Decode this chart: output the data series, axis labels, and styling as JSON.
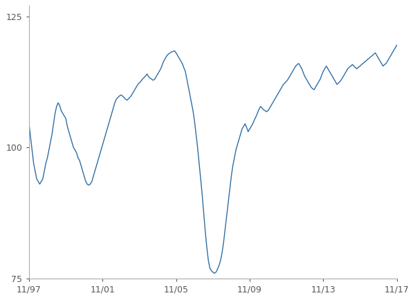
{
  "line_color": "#2e6da4",
  "line_width": 1.0,
  "background_color": "#ffffff",
  "ylim": [
    75,
    127
  ],
  "yticks": [
    75,
    100,
    125
  ],
  "xtick_labels": [
    "11/97",
    "11/01",
    "11/05",
    "11/09",
    "11/13",
    "11/17"
  ],
  "xtick_positions": [
    0,
    48,
    96,
    144,
    192,
    240
  ],
  "spine_color": "#aaaaaa",
  "tick_color": "#555555",
  "data_points": [
    104.5,
    102.0,
    99.5,
    97.0,
    95.5,
    94.0,
    93.5,
    93.0,
    93.5,
    94.0,
    95.5,
    97.0,
    98.0,
    99.5,
    101.0,
    102.5,
    104.5,
    106.5,
    107.8,
    108.5,
    108.0,
    107.0,
    106.5,
    106.0,
    105.5,
    104.0,
    103.0,
    102.0,
    101.0,
    100.0,
    99.5,
    99.0,
    98.0,
    97.5,
    96.5,
    95.5,
    94.5,
    93.5,
    93.0,
    92.8,
    93.0,
    93.5,
    94.5,
    95.5,
    96.5,
    97.5,
    98.5,
    99.5,
    100.5,
    101.5,
    102.5,
    103.5,
    104.5,
    105.5,
    106.5,
    107.5,
    108.5,
    109.2,
    109.5,
    109.8,
    110.0,
    109.8,
    109.5,
    109.2,
    109.0,
    109.3,
    109.6,
    110.0,
    110.5,
    111.0,
    111.5,
    112.0,
    112.3,
    112.6,
    113.0,
    113.3,
    113.6,
    114.0,
    113.5,
    113.2,
    113.0,
    112.8,
    113.0,
    113.5,
    114.0,
    114.5,
    115.0,
    115.8,
    116.5,
    117.0,
    117.5,
    117.8,
    118.0,
    118.2,
    118.3,
    118.4,
    118.0,
    117.5,
    117.0,
    116.5,
    116.0,
    115.2,
    114.5,
    113.0,
    111.5,
    110.0,
    108.5,
    107.0,
    105.0,
    102.5,
    100.0,
    97.0,
    94.0,
    91.0,
    87.5,
    84.0,
    81.0,
    78.5,
    77.0,
    76.5,
    76.2,
    76.0,
    76.2,
    76.8,
    77.5,
    78.5,
    80.0,
    82.0,
    84.5,
    87.0,
    89.5,
    92.0,
    94.5,
    96.5,
    98.0,
    99.5,
    100.5,
    101.5,
    102.5,
    103.5,
    104.0,
    104.5,
    103.8,
    103.0,
    103.5,
    104.0,
    104.5,
    105.2,
    105.8,
    106.5,
    107.2,
    107.8,
    107.5,
    107.2,
    107.0,
    106.8,
    107.0,
    107.5,
    108.0,
    108.5,
    109.0,
    109.5,
    110.0,
    110.5,
    111.0,
    111.5,
    112.0,
    112.3,
    112.6,
    113.0,
    113.5,
    114.0,
    114.5,
    115.0,
    115.5,
    115.8,
    116.0,
    115.5,
    115.0,
    114.2,
    113.5,
    113.0,
    112.5,
    112.0,
    111.5,
    111.2,
    111.0,
    111.5,
    112.0,
    112.5,
    113.0,
    113.8,
    114.5,
    115.0,
    115.5,
    115.0,
    114.5,
    114.0,
    113.5,
    113.0,
    112.5,
    112.0,
    112.3,
    112.6,
    113.0,
    113.5,
    114.0,
    114.5,
    115.0,
    115.3,
    115.5,
    115.8,
    115.5,
    115.2,
    115.0,
    115.3,
    115.5,
    115.8,
    116.0,
    116.3,
    116.5,
    116.8,
    117.0,
    117.3,
    117.5,
    117.8,
    118.0,
    117.5,
    117.0,
    116.5,
    116.0,
    115.5,
    115.8,
    116.0,
    116.5,
    117.0,
    117.5,
    118.0,
    118.5,
    119.0,
    119.5
  ]
}
